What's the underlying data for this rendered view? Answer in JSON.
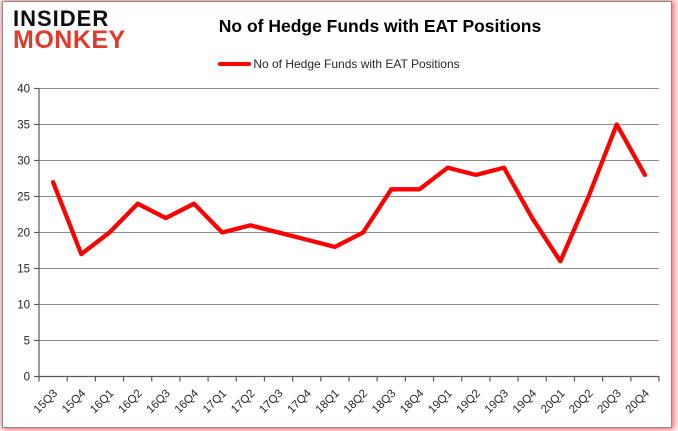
{
  "logo": {
    "line1": "INSIDER",
    "line2": "MONKEY"
  },
  "header": {
    "title": "No of Hedge Funds with EAT Positions"
  },
  "legend": {
    "label": "No of Hedge Funds with EAT Positions"
  },
  "chart_data": {
    "type": "line",
    "title": "No of Hedge Funds with EAT Positions",
    "xlabel": "",
    "ylabel": "",
    "categories": [
      "15Q3",
      "15Q4",
      "16Q1",
      "16Q2",
      "16Q3",
      "16Q4",
      "17Q1",
      "17Q2",
      "17Q3",
      "17Q4",
      "18Q1",
      "18Q2",
      "18Q3",
      "18Q4",
      "19Q1",
      "19Q2",
      "19Q3",
      "19Q4",
      "20Q1",
      "20Q2",
      "20Q3",
      "20Q4"
    ],
    "series": [
      {
        "name": "No of Hedge Funds with EAT Positions",
        "color": "#FF0000",
        "values": [
          27,
          17,
          20,
          24,
          22,
          24,
          20,
          21,
          20,
          19,
          18,
          20,
          26,
          26,
          29,
          28,
          29,
          22,
          16,
          25,
          35,
          28
        ]
      }
    ],
    "ylim": [
      0,
      40
    ],
    "ytick_step": 5,
    "grid": true,
    "gridline_color": "#8c8c8c",
    "axis_color": "#595959",
    "tick_label_color": "#262626",
    "legend_position": "top"
  }
}
